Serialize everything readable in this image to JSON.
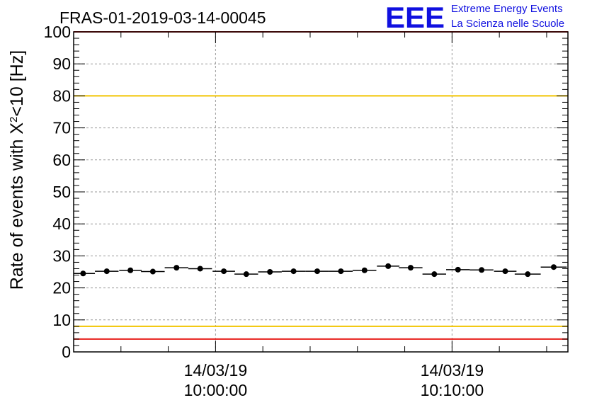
{
  "header": {
    "run_title": "FRAS-01-2019-03-14-00045",
    "logo_text": "EEE",
    "logo_line1": "Extreme Energy Events",
    "logo_line2": "La Scienza nelle Scuole"
  },
  "colors": {
    "logo": "#1010e0",
    "red_threshold": "#e8201c",
    "yellow_threshold": "#f2c400",
    "grid": "#9a9a9a",
    "markers": "#000000"
  },
  "chart_data": {
    "type": "scatter",
    "title": "FRAS-01-2019-03-14-00045",
    "ylabel_main": "Rate of events with X",
    "ylabel_sup": "2",
    "ylabel_tail": "<10 [Hz]",
    "ylim": [
      0,
      100
    ],
    "yticks": [
      "0",
      "10",
      "20",
      "30",
      "40",
      "50",
      "60",
      "70",
      "80",
      "90",
      "100"
    ],
    "x_unit": "minutes",
    "xlim": [
      -6.0,
      14.9
    ],
    "xticks": [
      {
        "x": 0,
        "date": "14/03/19",
        "time": "10:00:00"
      },
      {
        "x": 10,
        "date": "14/03/19",
        "time": "10:10:00"
      }
    ],
    "grid": true,
    "thresholds": [
      {
        "y": 100,
        "color": "red"
      },
      {
        "y": 80,
        "color": "yellow"
      },
      {
        "y": 8,
        "color": "yellow"
      },
      {
        "y": 4,
        "color": "red"
      }
    ],
    "series": [
      {
        "x": [
          -5.6,
          -4.6,
          -3.6,
          -2.65,
          -1.65,
          -0.65,
          0.35,
          1.3,
          2.3,
          3.3,
          4.3,
          5.3,
          6.3,
          7.3,
          8.25,
          9.25,
          10.25,
          11.25,
          12.25,
          13.2,
          14.3
        ],
        "y": [
          24.5,
          25.2,
          25.5,
          25.1,
          26.3,
          26.0,
          25.2,
          24.3,
          25.0,
          25.2,
          25.2,
          25.2,
          25.5,
          26.8,
          26.3,
          24.3,
          25.7,
          25.6,
          25.2,
          24.3,
          26.5
        ]
      }
    ]
  }
}
